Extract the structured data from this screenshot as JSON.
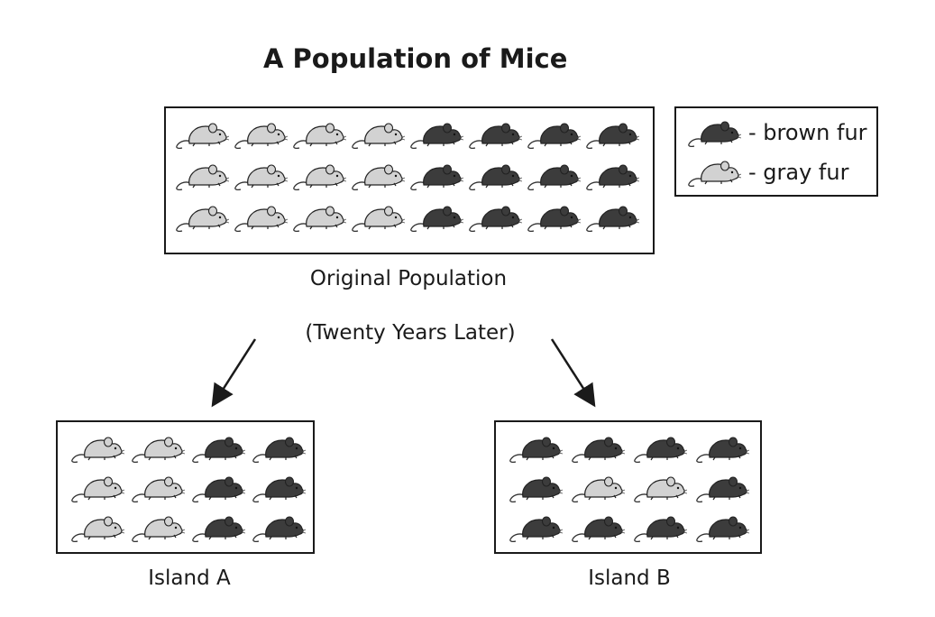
{
  "title": "A Population of Mice",
  "legend": {
    "brown": {
      "label": "- brown fur",
      "color": "#3c3c3c"
    },
    "gray": {
      "label": "- gray fur",
      "color": "#d2d2d2"
    }
  },
  "original": {
    "caption": "Original Population",
    "rows": [
      [
        "gray",
        "gray",
        "gray",
        "gray",
        "brown",
        "brown",
        "brown",
        "brown"
      ],
      [
        "gray",
        "gray",
        "gray",
        "gray",
        "brown",
        "brown",
        "brown",
        "brown"
      ],
      [
        "gray",
        "gray",
        "gray",
        "gray",
        "brown",
        "brown",
        "brown",
        "brown"
      ]
    ]
  },
  "time_label": "(Twenty Years Later)",
  "island_a": {
    "caption": "Island A",
    "rows": [
      [
        "gray",
        "gray",
        "brown",
        "brown"
      ],
      [
        "gray",
        "gray",
        "brown",
        "brown"
      ],
      [
        "gray",
        "gray",
        "brown",
        "brown"
      ]
    ]
  },
  "island_b": {
    "caption": "Island B",
    "rows": [
      [
        "brown",
        "brown",
        "brown",
        "brown"
      ],
      [
        "brown",
        "gray",
        "gray",
        "brown"
      ],
      [
        "brown",
        "brown",
        "brown",
        "brown"
      ]
    ]
  }
}
